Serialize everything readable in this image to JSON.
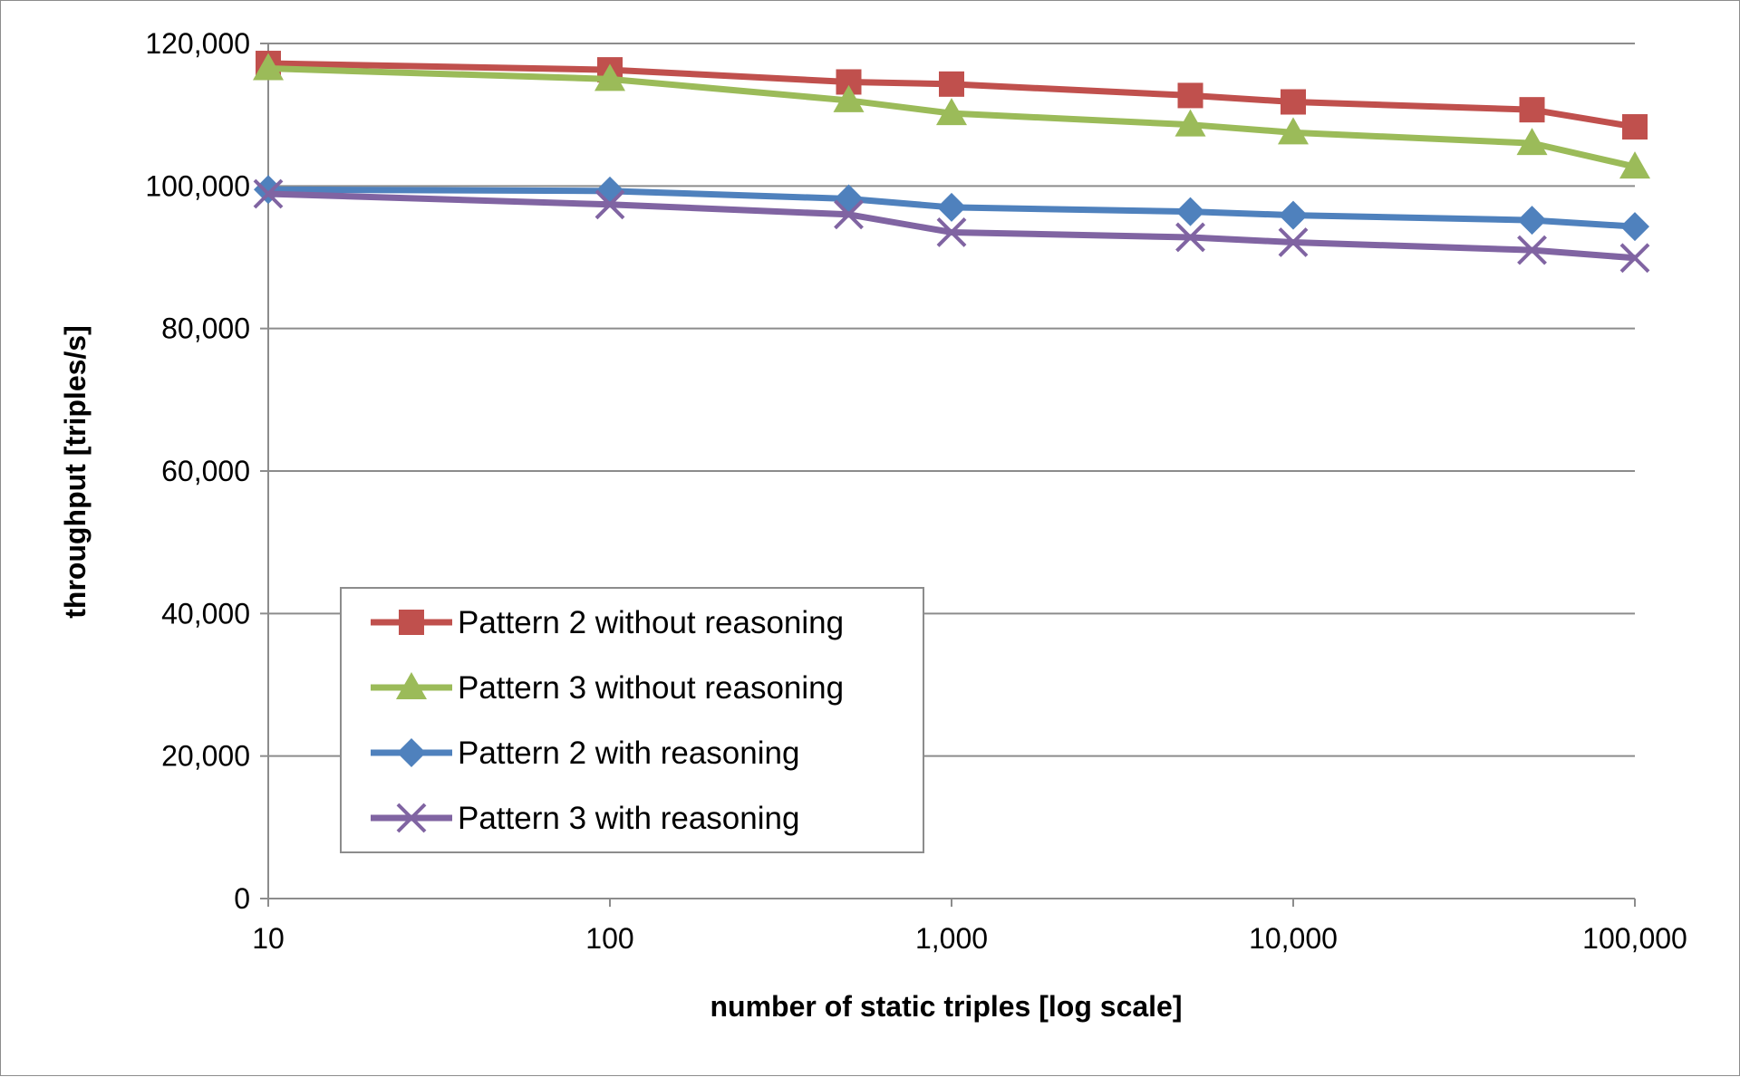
{
  "chart_data": {
    "type": "line",
    "title": "",
    "xlabel": "number of static triples [log scale]",
    "ylabel": "throughput [triples/s]",
    "x_scale": "log",
    "xlim": [
      10,
      100000
    ],
    "ylim": [
      0,
      120000
    ],
    "grid": true,
    "legend_position": "lower-left",
    "x_ticks": [
      "10",
      "100",
      "1,000",
      "10,000",
      "100,000"
    ],
    "y_ticks": [
      "0",
      "20,000",
      "40,000",
      "60,000",
      "80,000",
      "100,000",
      "120,000"
    ],
    "x": [
      10,
      100,
      500,
      1000,
      5000,
      10000,
      50000,
      100000
    ],
    "series": [
      {
        "name": "Pattern 2 without reasoning",
        "color": "#c0504d",
        "marker": "square",
        "values": [
          117200,
          116300,
          114600,
          114300,
          112700,
          111800,
          110700,
          108300
        ]
      },
      {
        "name": "Pattern 3 without reasoning",
        "color": "#9bbb59",
        "marker": "triangle",
        "values": [
          116500,
          115000,
          112000,
          110200,
          108600,
          107500,
          106000,
          102700
        ]
      },
      {
        "name": "Pattern 2 with reasoning",
        "color": "#4f81bd",
        "marker": "diamond",
        "values": [
          99500,
          99300,
          98200,
          97000,
          96400,
          95900,
          95200,
          94300
        ]
      },
      {
        "name": "Pattern 3 with reasoning",
        "color": "#8064a2",
        "marker": "x",
        "values": [
          98900,
          97400,
          96000,
          93500,
          92800,
          92100,
          91000,
          89900
        ]
      }
    ]
  }
}
